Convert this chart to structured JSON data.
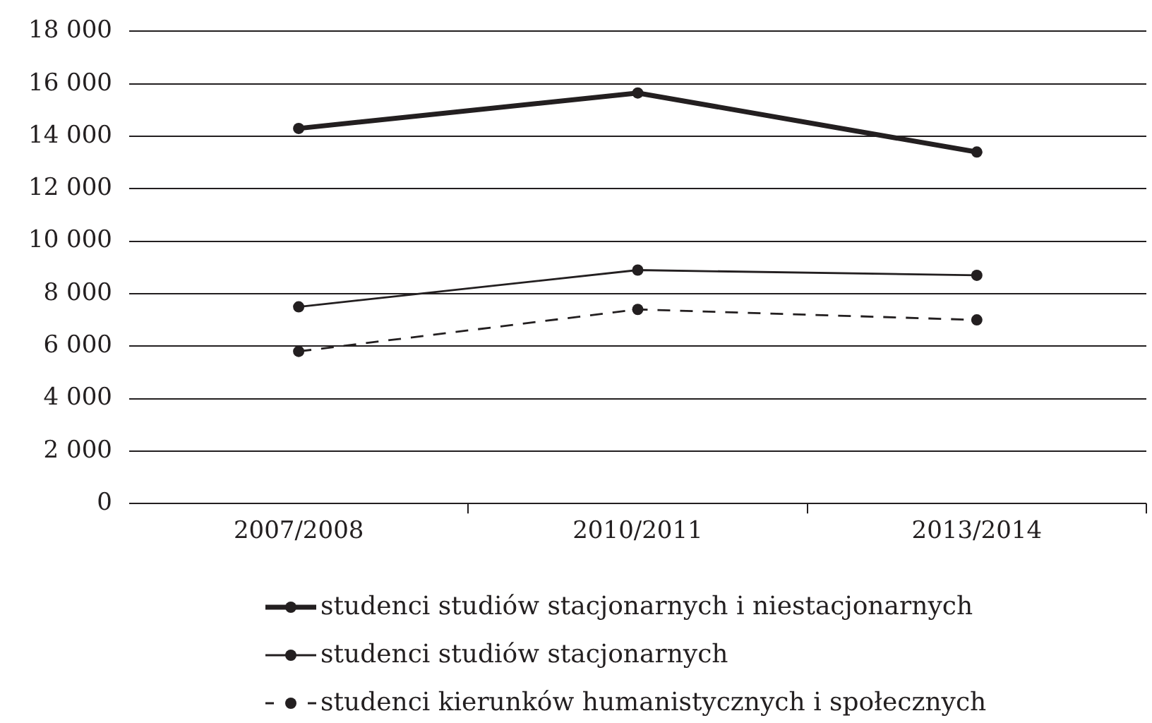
{
  "chart_data": {
    "type": "line",
    "categories": [
      "2007/2008",
      "2010/2011",
      "2013/2014"
    ],
    "series": [
      {
        "name": "studenci studiów stacjonarnych i niestacjonarnych",
        "color": "#231f20",
        "values": [
          14300,
          15650,
          13400
        ],
        "line_style": "solid"
      },
      {
        "name": "studenci studiów stacjonarnych",
        "color": "#231f20",
        "values": [
          7500,
          8900,
          8700
        ],
        "line_style": "solid"
      },
      {
        "name": "studenci kierunków humanistycznych i społecznych",
        "color": "#231f20",
        "values": [
          5800,
          7400,
          7000
        ],
        "line_style": "dashed"
      }
    ],
    "ylim": [
      0,
      18000
    ],
    "yticks": [
      {
        "value": 0,
        "label": "0"
      },
      {
        "value": 2000,
        "label": "2 000"
      },
      {
        "value": 4000,
        "label": "4 000"
      },
      {
        "value": 6000,
        "label": "6 000"
      },
      {
        "value": 8000,
        "label": "8 000"
      },
      {
        "value": 10000,
        "label": "10 000"
      },
      {
        "value": 12000,
        "label": "12 000"
      },
      {
        "value": 14000,
        "label": "14 000"
      },
      {
        "value": 16000,
        "label": "16 000"
      },
      {
        "value": 18000,
        "label": "18 000"
      }
    ],
    "grid": "y",
    "legend": "bottom",
    "marker": "circle"
  }
}
